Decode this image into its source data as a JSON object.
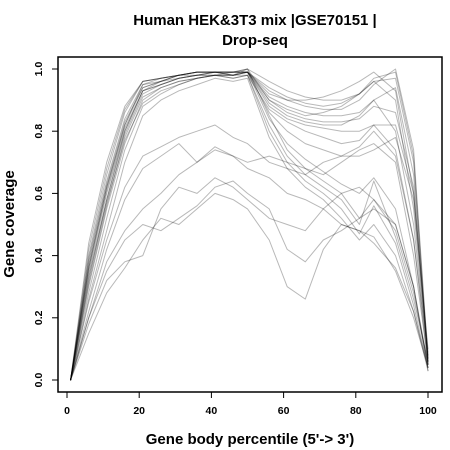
{
  "chart_data": {
    "type": "line",
    "title_lines": [
      "Human HEK&3T3 mix |GSE70151 |",
      "Drop-seq"
    ],
    "xlabel": "Gene body percentile (5'-> 3')",
    "ylabel": "Gene coverage",
    "xlim": [
      0,
      100
    ],
    "ylim": [
      0,
      1
    ],
    "x_ticks": [
      "0",
      "20",
      "40",
      "60",
      "80",
      "100"
    ],
    "y_ticks": [
      "0.0",
      "0.2",
      "0.4",
      "0.6",
      "0.8",
      "1.0"
    ],
    "grid": false,
    "legend": "none",
    "line_color": "#000000",
    "x": [
      1,
      6,
      11,
      16,
      21,
      26,
      31,
      36,
      41,
      46,
      50,
      56,
      61,
      66,
      71,
      76,
      81,
      85,
      91,
      96,
      100
    ],
    "series": [
      {
        "values": [
          0.0,
          0.36,
          0.62,
          0.82,
          0.95,
          0.97,
          0.98,
          0.99,
          0.99,
          0.99,
          1.0,
          0.96,
          0.93,
          0.91,
          0.9,
          0.9,
          0.92,
          0.96,
          0.97,
          0.7,
          0.05
        ]
      },
      {
        "values": [
          0.0,
          0.4,
          0.66,
          0.86,
          0.96,
          0.97,
          0.98,
          0.99,
          0.99,
          0.99,
          0.99,
          0.94,
          0.91,
          0.89,
          0.88,
          0.89,
          0.92,
          0.97,
          0.99,
          0.72,
          0.06
        ]
      },
      {
        "values": [
          0.0,
          0.32,
          0.58,
          0.8,
          0.93,
          0.96,
          0.97,
          0.98,
          0.99,
          0.98,
          0.99,
          0.93,
          0.9,
          0.88,
          0.87,
          0.87,
          0.9,
          0.95,
          1.0,
          0.74,
          0.07
        ]
      },
      {
        "values": [
          0.0,
          0.38,
          0.63,
          0.83,
          0.94,
          0.96,
          0.98,
          0.99,
          0.99,
          0.99,
          1.0,
          0.9,
          0.86,
          0.84,
          0.83,
          0.83,
          0.84,
          0.88,
          0.86,
          0.62,
          0.08
        ]
      },
      {
        "values": [
          0.0,
          0.35,
          0.6,
          0.8,
          0.93,
          0.95,
          0.97,
          0.98,
          0.98,
          0.98,
          0.99,
          0.88,
          0.84,
          0.82,
          0.81,
          0.8,
          0.8,
          0.82,
          0.82,
          0.6,
          0.1
        ]
      },
      {
        "values": [
          0.0,
          0.42,
          0.68,
          0.87,
          0.96,
          0.97,
          0.98,
          0.99,
          0.99,
          0.99,
          0.99,
          0.86,
          0.8,
          0.76,
          0.74,
          0.72,
          0.72,
          0.74,
          0.78,
          0.58,
          0.09
        ]
      },
      {
        "values": [
          0.0,
          0.34,
          0.58,
          0.79,
          0.92,
          0.95,
          0.97,
          0.98,
          0.98,
          0.99,
          0.99,
          0.84,
          0.76,
          0.71,
          0.67,
          0.63,
          0.6,
          0.65,
          0.55,
          0.3,
          0.04
        ]
      },
      {
        "values": [
          0.0,
          0.37,
          0.62,
          0.82,
          0.94,
          0.96,
          0.98,
          0.98,
          0.99,
          0.98,
          1.0,
          0.85,
          0.74,
          0.68,
          0.64,
          0.6,
          0.52,
          0.58,
          0.48,
          0.28,
          0.05
        ]
      },
      {
        "values": [
          0.0,
          0.3,
          0.55,
          0.76,
          0.9,
          0.94,
          0.96,
          0.97,
          0.98,
          0.98,
          0.98,
          0.82,
          0.72,
          0.66,
          0.62,
          0.58,
          0.5,
          0.64,
          0.46,
          0.26,
          0.06
        ]
      },
      {
        "values": [
          0.0,
          0.33,
          0.57,
          0.77,
          0.89,
          0.93,
          0.95,
          0.97,
          0.98,
          0.97,
          0.98,
          0.8,
          0.7,
          0.64,
          0.6,
          0.55,
          0.47,
          0.56,
          0.44,
          0.24,
          0.04
        ]
      },
      {
        "values": [
          0.0,
          0.39,
          0.64,
          0.84,
          0.95,
          0.96,
          0.98,
          0.99,
          0.99,
          0.99,
          0.99,
          0.9,
          0.87,
          0.85,
          0.86,
          0.88,
          0.92,
          0.96,
          0.9,
          0.55,
          0.07
        ]
      },
      {
        "values": [
          0.0,
          0.36,
          0.61,
          0.81,
          0.93,
          0.95,
          0.97,
          0.98,
          0.99,
          0.98,
          0.99,
          0.92,
          0.9,
          0.9,
          0.91,
          0.93,
          0.96,
          0.99,
          0.93,
          0.6,
          0.06
        ]
      },
      {
        "values": [
          0.0,
          0.28,
          0.52,
          0.74,
          0.88,
          0.92,
          0.95,
          0.97,
          0.98,
          0.97,
          0.98,
          0.87,
          0.83,
          0.8,
          0.78,
          0.76,
          0.77,
          0.82,
          0.74,
          0.45,
          0.08
        ]
      },
      {
        "values": [
          0.0,
          0.31,
          0.56,
          0.78,
          0.91,
          0.94,
          0.96,
          0.97,
          0.98,
          0.98,
          0.99,
          0.89,
          0.85,
          0.83,
          0.82,
          0.82,
          0.85,
          0.9,
          0.8,
          0.5,
          0.07
        ]
      },
      {
        "values": [
          0.0,
          0.44,
          0.7,
          0.88,
          0.96,
          0.97,
          0.98,
          0.99,
          0.99,
          0.99,
          0.99,
          0.91,
          0.88,
          0.86,
          0.85,
          0.85,
          0.86,
          0.9,
          0.94,
          0.66,
          0.05
        ]
      },
      {
        "values": [
          0.0,
          0.26,
          0.48,
          0.7,
          0.85,
          0.9,
          0.93,
          0.95,
          0.97,
          0.96,
          0.97,
          0.78,
          0.68,
          0.62,
          0.58,
          0.52,
          0.45,
          0.5,
          0.4,
          0.22,
          0.03
        ]
      },
      {
        "values": [
          0.0,
          0.25,
          0.45,
          0.62,
          0.72,
          0.75,
          0.78,
          0.8,
          0.82,
          0.78,
          0.76,
          0.7,
          0.68,
          0.66,
          0.7,
          0.72,
          0.75,
          0.8,
          0.72,
          0.45,
          0.05
        ]
      },
      {
        "values": [
          0.0,
          0.22,
          0.42,
          0.58,
          0.68,
          0.72,
          0.76,
          0.7,
          0.74,
          0.72,
          0.7,
          0.72,
          0.7,
          0.68,
          0.66,
          0.7,
          0.74,
          0.76,
          0.7,
          0.4,
          0.06
        ]
      },
      {
        "values": [
          0.0,
          0.2,
          0.38,
          0.48,
          0.55,
          0.6,
          0.66,
          0.7,
          0.75,
          0.72,
          0.68,
          0.65,
          0.6,
          0.58,
          0.55,
          0.5,
          0.48,
          0.46,
          0.35,
          0.2,
          0.04
        ]
      },
      {
        "values": [
          0.0,
          0.18,
          0.32,
          0.38,
          0.4,
          0.55,
          0.62,
          0.6,
          0.65,
          0.62,
          0.58,
          0.52,
          0.5,
          0.48,
          0.55,
          0.6,
          0.62,
          0.58,
          0.5,
          0.3,
          0.05
        ]
      },
      {
        "values": [
          0.0,
          0.15,
          0.28,
          0.36,
          0.45,
          0.52,
          0.5,
          0.55,
          0.6,
          0.58,
          0.55,
          0.45,
          0.3,
          0.26,
          0.42,
          0.5,
          0.48,
          0.44,
          0.36,
          0.22,
          0.04
        ]
      },
      {
        "values": [
          0.0,
          0.2,
          0.35,
          0.45,
          0.5,
          0.48,
          0.52,
          0.56,
          0.62,
          0.64,
          0.6,
          0.55,
          0.42,
          0.38,
          0.45,
          0.48,
          0.52,
          0.55,
          0.5,
          0.3,
          0.03
        ]
      }
    ]
  }
}
